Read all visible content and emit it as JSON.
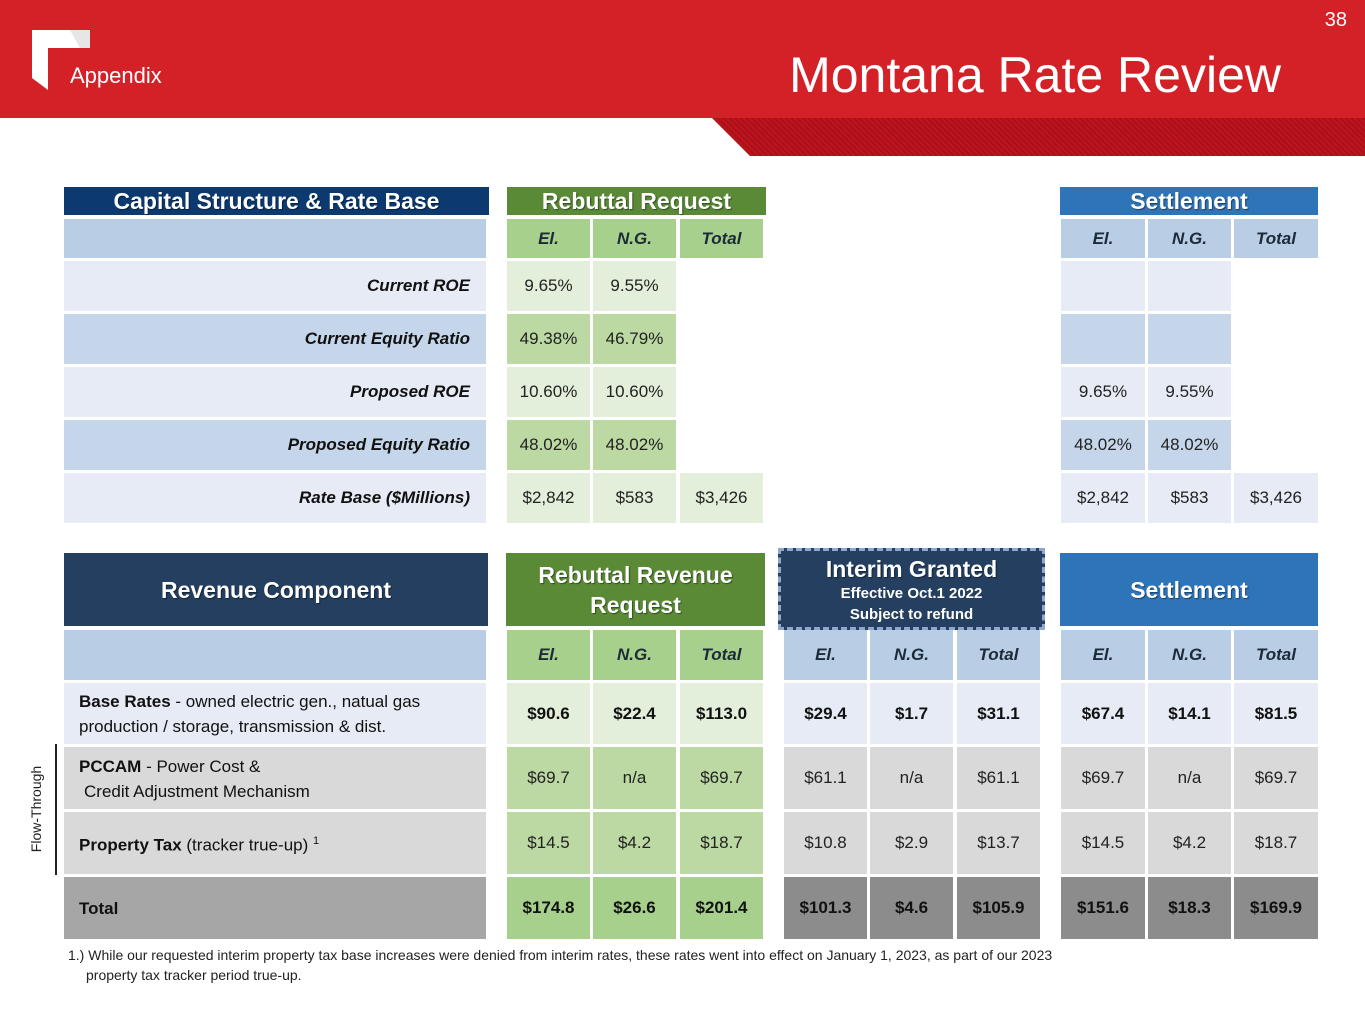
{
  "header": {
    "section_label": "Appendix",
    "title": "Montana Rate Review",
    "page_number": "38"
  },
  "table1": {
    "title": "Capital Structure & Rate Base",
    "rebuttal_title": "Rebuttal Request",
    "settlement_title": "Settlement",
    "columns": [
      "El.",
      "N.G.",
      "Total"
    ],
    "rows": [
      {
        "label": "Current ROE",
        "rebuttal": [
          "9.65%",
          "9.55%",
          ""
        ],
        "settlement": [
          "",
          "",
          ""
        ]
      },
      {
        "label": "Current Equity Ratio",
        "rebuttal": [
          "49.38%",
          "46.79%",
          ""
        ],
        "settlement": [
          "",
          "",
          ""
        ]
      },
      {
        "label": "Proposed ROE",
        "rebuttal": [
          "10.60%",
          "10.60%",
          ""
        ],
        "settlement": [
          "9.65%",
          "9.55%",
          ""
        ]
      },
      {
        "label": "Proposed Equity Ratio",
        "rebuttal": [
          "48.02%",
          "48.02%",
          ""
        ],
        "settlement": [
          "48.02%",
          "48.02%",
          ""
        ]
      },
      {
        "label": "Rate Base ($Millions)",
        "rebuttal": [
          "$2,842",
          "$583",
          "$3,426"
        ],
        "settlement": [
          "$2,842",
          "$583",
          "$3,426"
        ]
      }
    ]
  },
  "table2": {
    "title": "Revenue Component",
    "rebuttal_title": "Rebuttal Revenue Request",
    "interim_title": "Interim Granted",
    "interim_sub1": "Effective Oct.1 2022",
    "interim_sub2": "Subject to refund",
    "settlement_title": "Settlement",
    "columns": [
      "El.",
      "N.G.",
      "Total"
    ],
    "rows": [
      {
        "label_bold": "Base Rates",
        "label_rest": " - owned electric gen., natual gas",
        "label_line2": "production / storage, transmission & dist.",
        "rebuttal": [
          "$90.6",
          "$22.4",
          "$113.0"
        ],
        "interim": [
          "$29.4",
          "$1.7",
          "$31.1"
        ],
        "settlement": [
          "$67.4",
          "$14.1",
          "$81.5"
        ]
      },
      {
        "label_bold": "PCCAM",
        "label_rest": " - Power Cost &",
        "label_line2": "Credit Adjustment Mechanism",
        "rebuttal": [
          "$69.7",
          "n/a",
          "$69.7"
        ],
        "interim": [
          "$61.1",
          "n/a",
          "$61.1"
        ],
        "settlement": [
          "$69.7",
          "n/a",
          "$69.7"
        ]
      },
      {
        "label_bold": "Property Tax",
        "label_rest": " (tracker true-up)",
        "footnote_mark": "1",
        "rebuttal": [
          "$14.5",
          "$4.2",
          "$18.7"
        ],
        "interim": [
          "$10.8",
          "$2.9",
          "$13.7"
        ],
        "settlement": [
          "$14.5",
          "$4.2",
          "$18.7"
        ]
      },
      {
        "label_bold": "Total",
        "rebuttal": [
          "$174.8",
          "$26.6",
          "$201.4"
        ],
        "interim": [
          "$101.3",
          "$4.6",
          "$105.9"
        ],
        "settlement": [
          "$151.6",
          "$18.3",
          "$169.9"
        ]
      }
    ],
    "flow_through_label": "Flow-Through"
  },
  "footnote": {
    "line1": "1.) While our requested interim property tax base increases were denied from interim rates, these rates went into effect on January 1, 2023, as part of our 2023",
    "line2": "property tax tracker period true-up."
  },
  "colors": {
    "brand_red": "#d42027",
    "navy": "#0c3a70",
    "green": "#5a8a36",
    "blue": "#2e74b8"
  }
}
